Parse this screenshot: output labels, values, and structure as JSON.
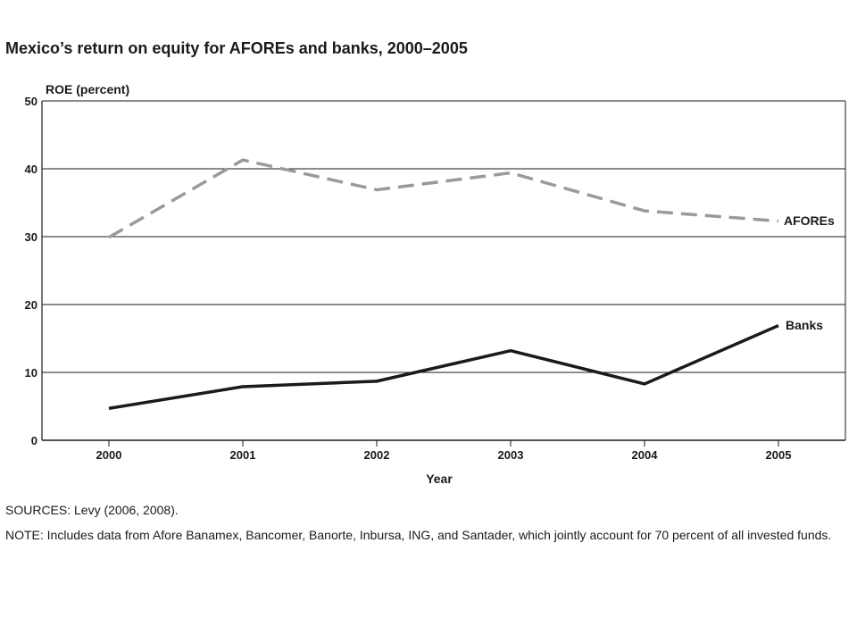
{
  "title": "Mexico’s return on equity for AFOREs and banks, 2000–2005",
  "sources": "SOURCES: Levy (2006, 2008).",
  "note": "NOTE: Includes data from Afore Banamex, Bancomer, Banorte, Inbursa, ING, and Santader, which jointly account for 70 percent of all invested funds.",
  "chart_data": {
    "type": "line",
    "title": "Mexico’s return on equity for AFOREs and banks, 2000–2005",
    "xlabel": "Year",
    "ylabel": "ROE (percent)",
    "categories": [
      "2000",
      "2001",
      "2002",
      "2003",
      "2004",
      "2005"
    ],
    "ylim": [
      0,
      50
    ],
    "yticks": [
      0,
      10,
      20,
      30,
      40,
      50
    ],
    "grid": "horizontal",
    "series": [
      {
        "name": "AFOREs",
        "values": [
          29.9,
          41.3,
          36.9,
          39.4,
          33.8,
          32.3
        ],
        "color": "#9a9a9a",
        "style": "dashed"
      },
      {
        "name": "Banks",
        "values": [
          4.7,
          7.9,
          8.7,
          13.2,
          8.3,
          16.9
        ],
        "color": "#1a1a1a",
        "style": "solid"
      }
    ]
  }
}
